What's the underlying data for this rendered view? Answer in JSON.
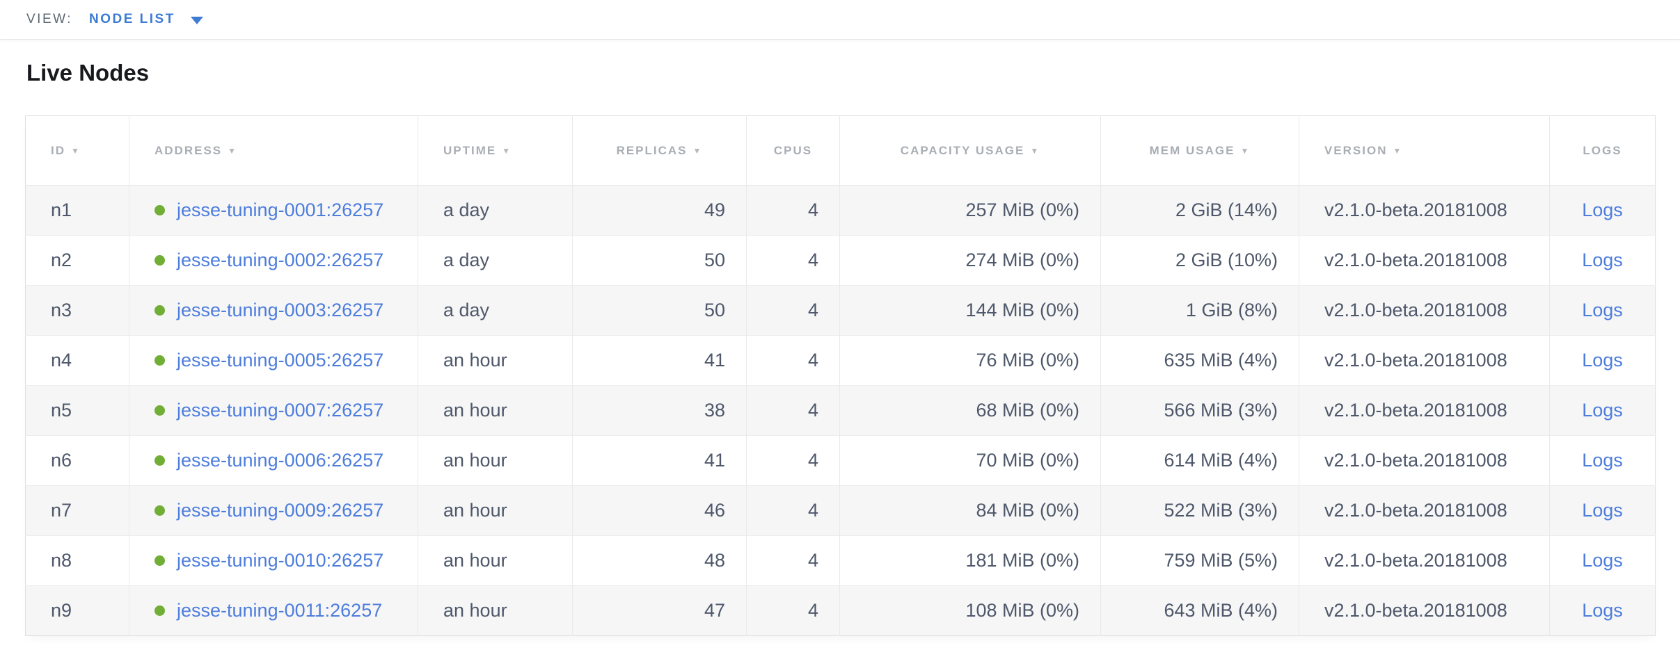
{
  "view_bar": {
    "label": "VIEW:",
    "selected": "NODE LIST"
  },
  "page": {
    "title": "Live Nodes"
  },
  "icons": {
    "sort_desc": "▼",
    "node_status_healthy_color": "#70ae35",
    "link_color": "#4d7ddc",
    "accent_blue": "#3b7bd3"
  },
  "table": {
    "logs_label": "Logs",
    "columns": [
      {
        "key": "id",
        "label": "ID",
        "sortable": true,
        "align": "left"
      },
      {
        "key": "address",
        "label": "ADDRESS",
        "sortable": true,
        "align": "left"
      },
      {
        "key": "uptime",
        "label": "UPTIME",
        "sortable": true,
        "align": "left"
      },
      {
        "key": "replicas",
        "label": "REPLICAS",
        "sortable": true,
        "align": "right"
      },
      {
        "key": "cpus",
        "label": "CPUS",
        "sortable": false,
        "align": "right"
      },
      {
        "key": "capacity",
        "label": "CAPACITY USAGE",
        "sortable": true,
        "align": "right"
      },
      {
        "key": "mem",
        "label": "MEM USAGE",
        "sortable": true,
        "align": "right"
      },
      {
        "key": "version",
        "label": "VERSION",
        "sortable": true,
        "align": "left"
      },
      {
        "key": "logs",
        "label": "LOGS",
        "sortable": false,
        "align": "center"
      }
    ],
    "rows": [
      {
        "id": "n1",
        "status": "healthy",
        "address": "jesse-tuning-0001:26257",
        "uptime": "a day",
        "replicas": "49",
        "cpus": "4",
        "capacity": "257 MiB (0%)",
        "mem": "2 GiB (14%)",
        "version": "v2.1.0-beta.20181008"
      },
      {
        "id": "n2",
        "status": "healthy",
        "address": "jesse-tuning-0002:26257",
        "uptime": "a day",
        "replicas": "50",
        "cpus": "4",
        "capacity": "274 MiB (0%)",
        "mem": "2 GiB (10%)",
        "version": "v2.1.0-beta.20181008"
      },
      {
        "id": "n3",
        "status": "healthy",
        "address": "jesse-tuning-0003:26257",
        "uptime": "a day",
        "replicas": "50",
        "cpus": "4",
        "capacity": "144 MiB (0%)",
        "mem": "1 GiB (8%)",
        "version": "v2.1.0-beta.20181008"
      },
      {
        "id": "n4",
        "status": "healthy",
        "address": "jesse-tuning-0005:26257",
        "uptime": "an hour",
        "replicas": "41",
        "cpus": "4",
        "capacity": "76 MiB (0%)",
        "mem": "635 MiB (4%)",
        "version": "v2.1.0-beta.20181008"
      },
      {
        "id": "n5",
        "status": "healthy",
        "address": "jesse-tuning-0007:26257",
        "uptime": "an hour",
        "replicas": "38",
        "cpus": "4",
        "capacity": "68 MiB (0%)",
        "mem": "566 MiB (3%)",
        "version": "v2.1.0-beta.20181008"
      },
      {
        "id": "n6",
        "status": "healthy",
        "address": "jesse-tuning-0006:26257",
        "uptime": "an hour",
        "replicas": "41",
        "cpus": "4",
        "capacity": "70 MiB (0%)",
        "mem": "614 MiB (4%)",
        "version": "v2.1.0-beta.20181008"
      },
      {
        "id": "n7",
        "status": "healthy",
        "address": "jesse-tuning-0009:26257",
        "uptime": "an hour",
        "replicas": "46",
        "cpus": "4",
        "capacity": "84 MiB (0%)",
        "mem": "522 MiB (3%)",
        "version": "v2.1.0-beta.20181008"
      },
      {
        "id": "n8",
        "status": "healthy",
        "address": "jesse-tuning-0010:26257",
        "uptime": "an hour",
        "replicas": "48",
        "cpus": "4",
        "capacity": "181 MiB (0%)",
        "mem": "759 MiB (5%)",
        "version": "v2.1.0-beta.20181008"
      },
      {
        "id": "n9",
        "status": "healthy",
        "address": "jesse-tuning-0011:26257",
        "uptime": "an hour",
        "replicas": "47",
        "cpus": "4",
        "capacity": "108 MiB (0%)",
        "mem": "643 MiB (4%)",
        "version": "v2.1.0-beta.20181008"
      }
    ]
  }
}
